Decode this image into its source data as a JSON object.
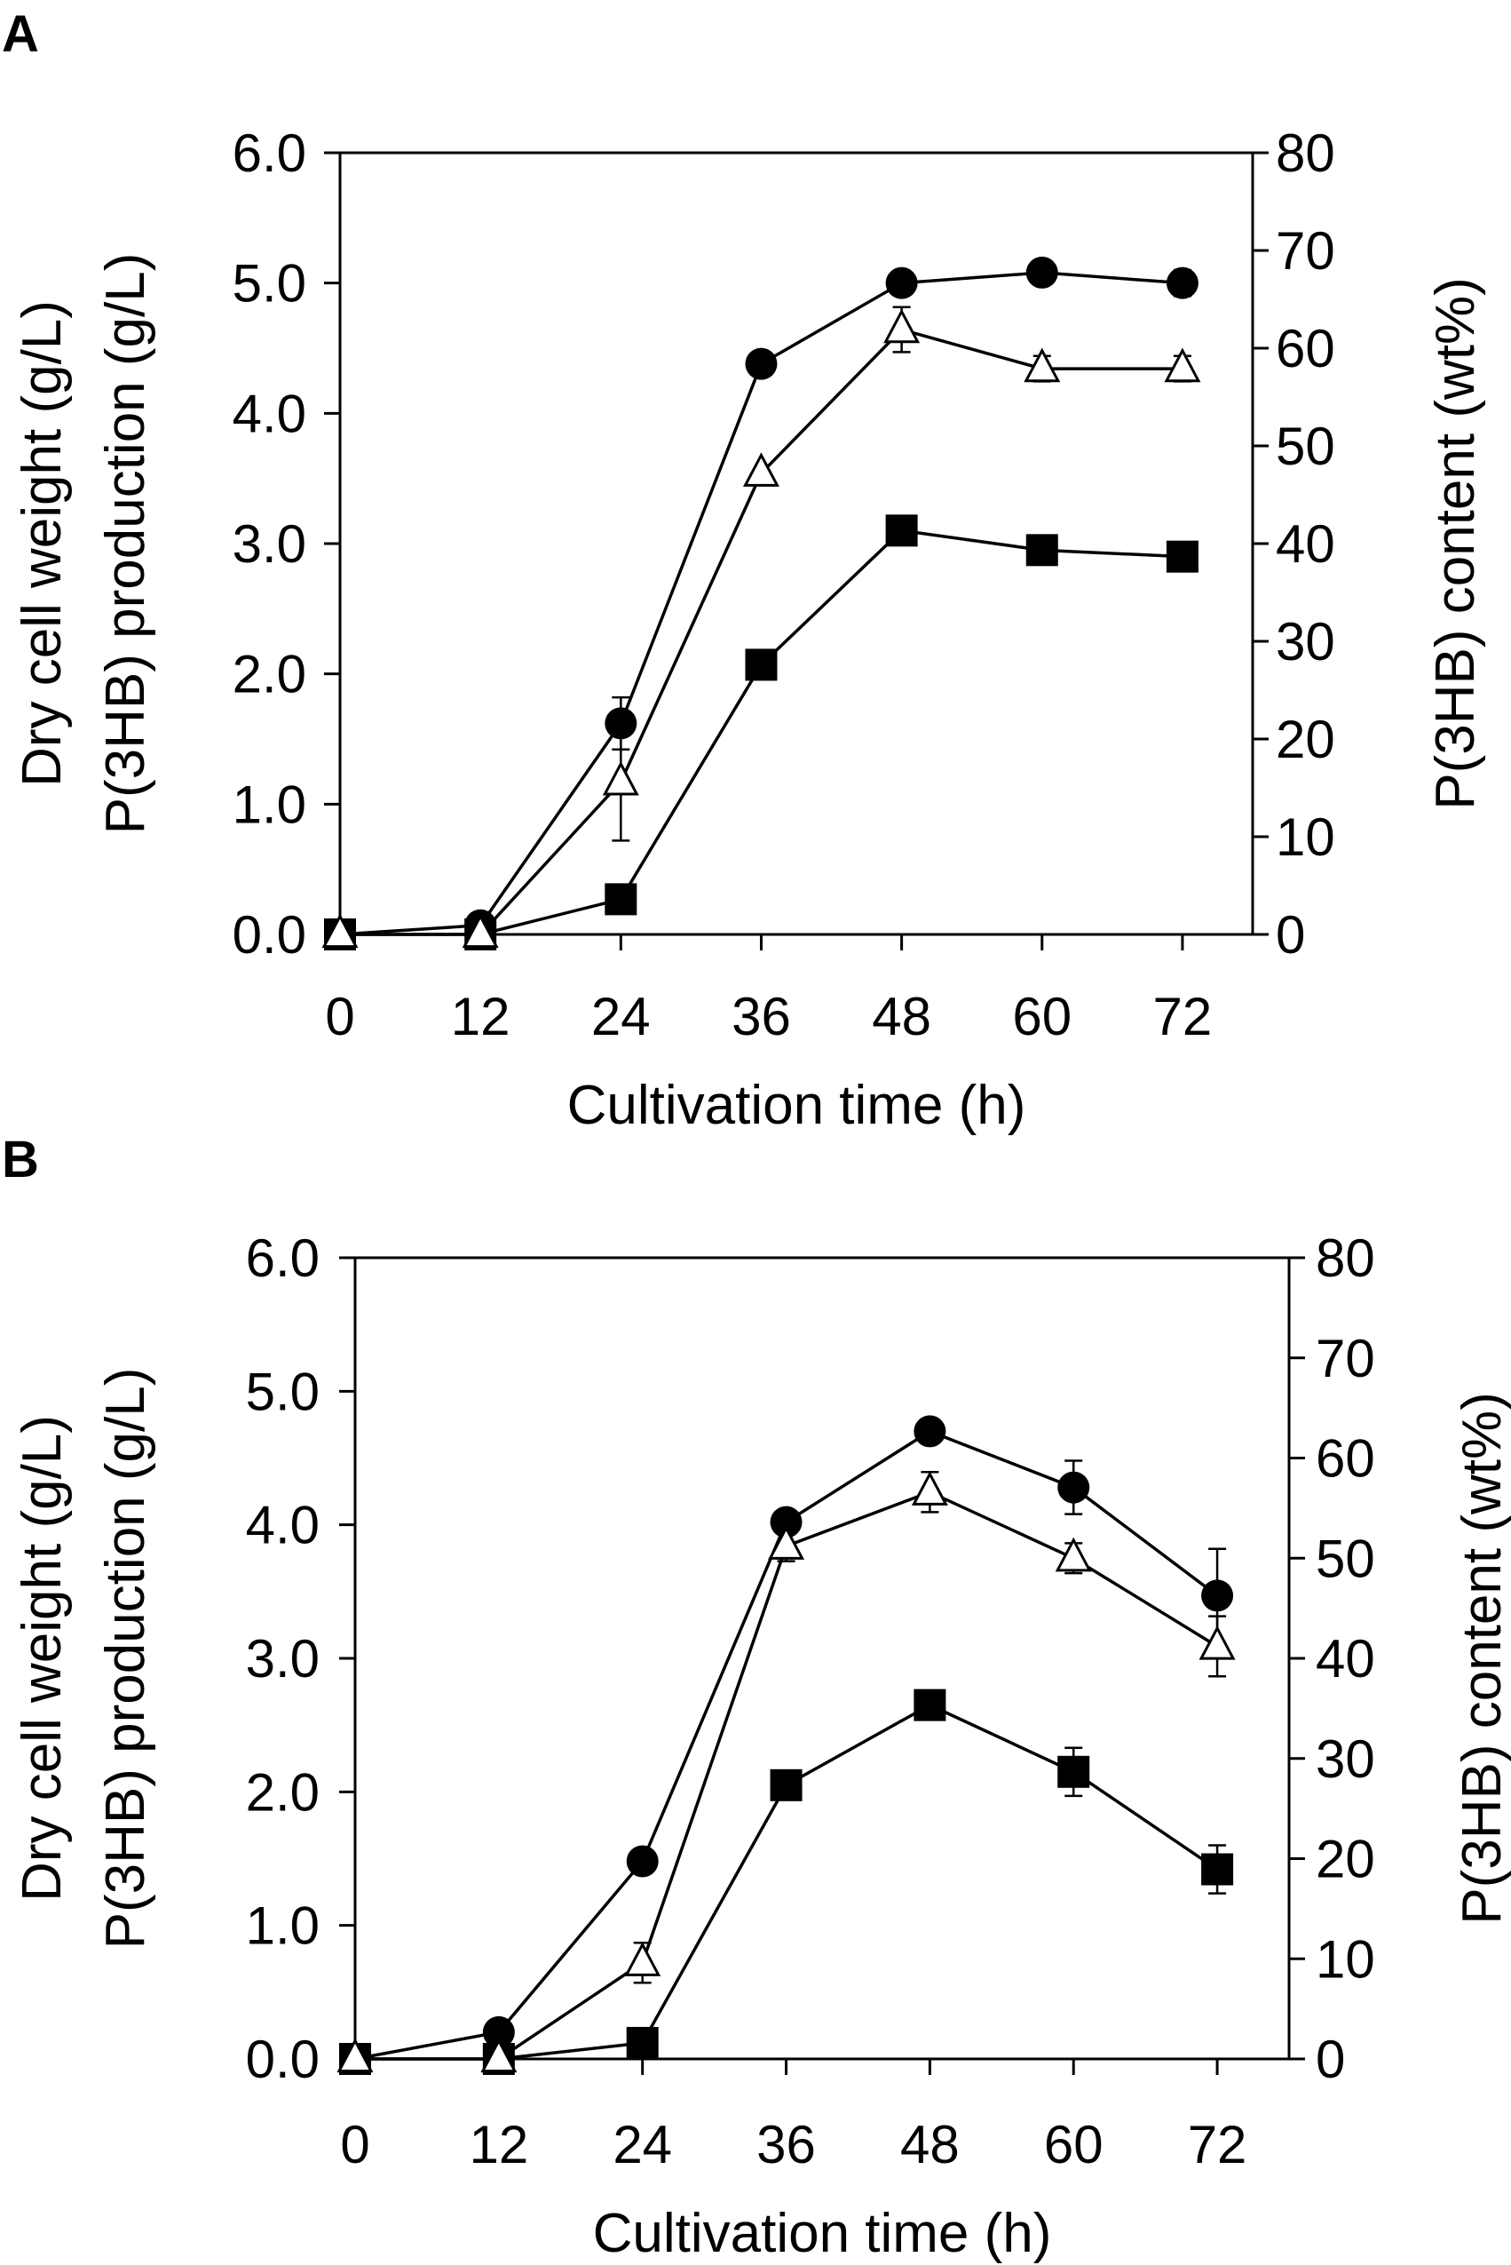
{
  "chart_data": [
    {
      "type": "line",
      "panel_label": "A",
      "xlabel": "Cultivation time (h)",
      "ylabel_left": [
        "Dry cell weight (g/L)",
        "P(3HB) production (g/L)"
      ],
      "ylabel_right": "P(3HB) content (wt%)",
      "xlim": [
        0,
        78
      ],
      "ylim_left": [
        0,
        6
      ],
      "ylim_right": [
        0,
        80
      ],
      "x_ticks": [
        "0",
        "12",
        "24",
        "36",
        "48",
        "60",
        "72"
      ],
      "y_left_ticks": [
        "0.0",
        "1.0",
        "2.0",
        "3.0",
        "4.0",
        "5.0",
        "6.0"
      ],
      "y_right_ticks": [
        "0",
        "10",
        "20",
        "30",
        "40",
        "50",
        "60",
        "70",
        "80"
      ],
      "x": [
        0,
        12,
        24,
        36,
        48,
        60,
        72
      ],
      "series": [
        {
          "name": "Dry cell weight",
          "marker": "filled-circle",
          "axis": "left",
          "values": [
            0.0,
            0.07,
            1.62,
            4.38,
            5.0,
            5.08,
            5.0
          ],
          "errors": [
            0,
            0,
            0.2,
            0,
            0.05,
            0.05,
            0.1
          ]
        },
        {
          "name": "P(3HB) production",
          "marker": "filled-square",
          "axis": "left",
          "values": [
            0.0,
            0.0,
            0.27,
            2.07,
            3.1,
            2.95,
            2.9
          ],
          "errors": [
            0,
            0,
            0.08,
            0,
            0.1,
            0.05,
            0.06
          ]
        },
        {
          "name": "P(3HB) content",
          "marker": "open-triangle",
          "axis": "right",
          "values": [
            0,
            0,
            15.6,
            47.2,
            61.9,
            57.9,
            57.9
          ],
          "errors": [
            0,
            0,
            6.0,
            0,
            2.3,
            1.3,
            1.3
          ]
        }
      ]
    },
    {
      "type": "line",
      "panel_label": "B",
      "xlabel": "Cultivation time (h)",
      "ylabel_left": [
        "Dry cell weight (g/L)",
        "P(3HB) production (g/L)"
      ],
      "ylabel_right": "P(3HB) content (wt%)",
      "xlim": [
        0,
        78
      ],
      "ylim_left": [
        0,
        6
      ],
      "ylim_right": [
        0,
        80
      ],
      "x_ticks": [
        "0",
        "12",
        "24",
        "36",
        "48",
        "60",
        "72"
      ],
      "y_left_ticks": [
        "0.0",
        "1.0",
        "2.0",
        "3.0",
        "4.0",
        "5.0",
        "6.0"
      ],
      "y_right_ticks": [
        "0",
        "10",
        "20",
        "30",
        "40",
        "50",
        "60",
        "70",
        "80"
      ],
      "x": [
        0,
        12,
        24,
        36,
        48,
        60,
        72
      ],
      "series": [
        {
          "name": "Dry cell weight",
          "marker": "filled-circle",
          "axis": "left",
          "values": [
            0.0,
            0.2,
            1.48,
            4.02,
            4.7,
            4.28,
            3.47
          ],
          "errors": [
            0,
            0,
            0,
            0,
            0,
            0.2,
            0.35
          ]
        },
        {
          "name": "P(3HB) production",
          "marker": "filled-square",
          "axis": "left",
          "values": [
            0.0,
            0.0,
            0.12,
            2.05,
            2.65,
            2.15,
            1.42
          ],
          "errors": [
            0,
            0,
            0,
            0,
            0,
            0.18,
            0.18
          ]
        },
        {
          "name": "P(3HB) content",
          "marker": "open-triangle",
          "axis": "right",
          "values": [
            0,
            0,
            9.6,
            51.2,
            56.6,
            50.0,
            41.2
          ],
          "errors": [
            0,
            0,
            2.0,
            1.5,
            2.0,
            1.5,
            3.0
          ]
        }
      ]
    }
  ]
}
